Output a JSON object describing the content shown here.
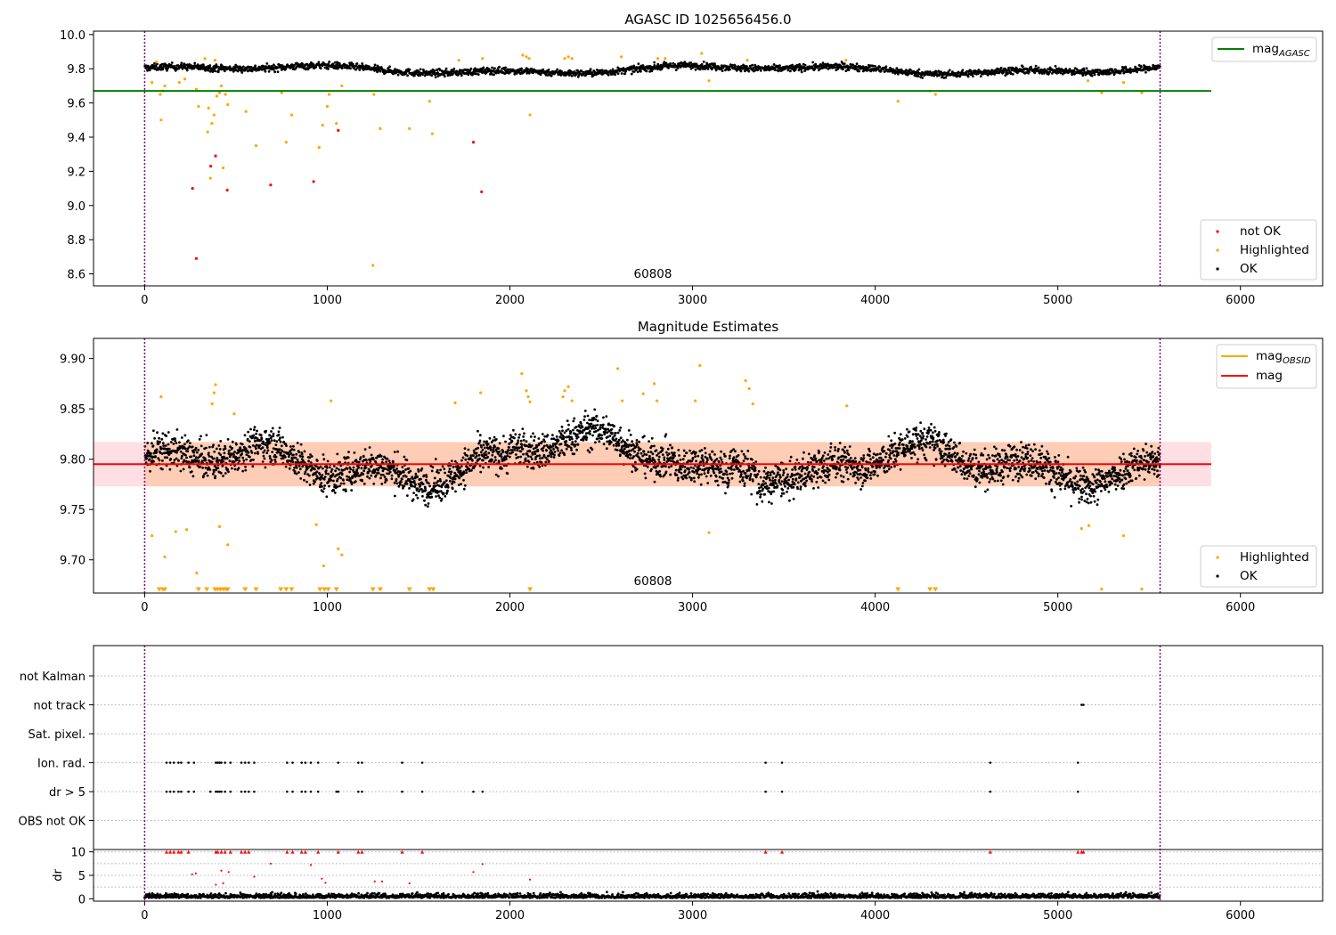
{
  "chart_data": [
    {
      "type": "scatter",
      "title": "AGASC ID 1025656456.0",
      "xlim": [
        -280,
        6450
      ],
      "ylim": [
        8.53,
        10.02
      ],
      "x_ticks": [
        0,
        1000,
        2000,
        3000,
        4000,
        5000,
        6000
      ],
      "y_ticks": [
        8.6,
        8.8,
        9.0,
        9.2,
        9.4,
        9.6,
        9.8,
        10.0
      ],
      "vlines": [
        0,
        5560
      ],
      "obsid_label": "60808",
      "mag_agasc": 9.67,
      "mag_agasc_xrange": [
        -280,
        5840
      ],
      "legend": {
        "lines": [
          {
            "name_main": "mag",
            "name_sub": "AGASC",
            "color": "#008000"
          }
        ],
        "points": [
          {
            "name": "not OK",
            "color": "#ff0000"
          },
          {
            "name": "Highlighted",
            "color": "#ffa500"
          },
          {
            "name": "OK",
            "color": "#000000"
          }
        ]
      },
      "ok_band": {
        "x_start": 0,
        "x_end": 5560,
        "center": 9.795,
        "spread": 0.018
      },
      "series": [
        {
          "name": "not OK",
          "color": "#ff0000",
          "points": [
            [
              262,
              9.1
            ],
            [
              283,
              8.69
            ],
            [
              362,
              9.23
            ],
            [
              388,
              9.29
            ],
            [
              452,
              9.09
            ],
            [
              690,
              9.12
            ],
            [
              925,
              9.14
            ],
            [
              1060,
              9.44
            ],
            [
              1800,
              9.37
            ],
            [
              1845,
              9.08
            ]
          ]
        },
        {
          "name": "Highlighted",
          "color": "#ffa500",
          "points": [
            [
              40,
              9.72
            ],
            [
              85,
              9.65
            ],
            [
              90,
              9.5
            ],
            [
              100,
              9.67
            ],
            [
              110,
              9.7
            ],
            [
              190,
              9.72
            ],
            [
              220,
              9.74
            ],
            [
              283,
              9.68
            ],
            [
              295,
              9.58
            ],
            [
              345,
              9.43
            ],
            [
              350,
              9.57
            ],
            [
              360,
              9.16
            ],
            [
              368,
              9.48
            ],
            [
              380,
              9.53
            ],
            [
              395,
              9.64
            ],
            [
              410,
              9.66
            ],
            [
              420,
              9.7
            ],
            [
              430,
              9.22
            ],
            [
              442,
              9.65
            ],
            [
              455,
              9.59
            ],
            [
              555,
              9.55
            ],
            [
              610,
              9.35
            ],
            [
              750,
              9.66
            ],
            [
              775,
              9.37
            ],
            [
              805,
              9.53
            ],
            [
              955,
              9.34
            ],
            [
              975,
              9.47
            ],
            [
              1000,
              9.58
            ],
            [
              1010,
              9.65
            ],
            [
              1050,
              9.48
            ],
            [
              1080,
              9.7
            ],
            [
              1255,
              9.65
            ],
            [
              1290,
              9.45
            ],
            [
              1450,
              9.45
            ],
            [
              1560,
              9.61
            ],
            [
              1575,
              9.42
            ],
            [
              2110,
              9.53
            ],
            [
              3090,
              9.73
            ],
            [
              4125,
              9.61
            ],
            [
              4300,
              9.67
            ],
            [
              4330,
              9.65
            ],
            [
              5165,
              9.73
            ],
            [
              5240,
              9.66
            ],
            [
              5360,
              9.72
            ],
            [
              5460,
              9.66
            ],
            [
              1250,
              8.65
            ],
            [
              65,
              9.84
            ],
            [
              330,
              9.86
            ],
            [
              385,
              9.85
            ],
            [
              1720,
              9.85
            ],
            [
              1850,
              9.86
            ],
            [
              2070,
              9.88
            ],
            [
              2090,
              9.87
            ],
            [
              2105,
              9.86
            ],
            [
              2300,
              9.86
            ],
            [
              2320,
              9.87
            ],
            [
              2340,
              9.86
            ],
            [
              2610,
              9.87
            ],
            [
              2810,
              9.86
            ],
            [
              2850,
              9.86
            ],
            [
              3050,
              9.89
            ],
            [
              3300,
              9.85
            ],
            [
              3840,
              9.85
            ]
          ]
        }
      ]
    },
    {
      "type": "scatter",
      "title": "Magnitude Estimates",
      "xlim": [
        -280,
        6450
      ],
      "ylim": [
        9.667,
        9.92
      ],
      "x_ticks": [
        0,
        1000,
        2000,
        3000,
        4000,
        5000,
        6000
      ],
      "y_ticks": [
        9.7,
        9.75,
        9.8,
        9.85,
        9.9
      ],
      "vlines": [
        0,
        5560
      ],
      "obsid_label": "60808",
      "mag_line": {
        "value": 9.795,
        "xrange": [
          -280,
          5840
        ],
        "color": "#ff0000"
      },
      "mag_band": {
        "low": 9.773,
        "high": 9.817,
        "color": "#ffc0c8"
      },
      "obsid_band": {
        "x_start": 0,
        "x_end": 5560,
        "low": 9.773,
        "high": 9.817,
        "color": "#ffa54f"
      },
      "legend": {
        "lines": [
          {
            "name_main": "mag",
            "name_sub": "OBSID",
            "color": "#ffa500"
          },
          {
            "name_main": "mag",
            "name_sub": "",
            "color": "#ff0000"
          }
        ],
        "points": [
          {
            "name": "Highlighted",
            "color": "#ffa500"
          },
          {
            "name": "OK",
            "color": "#000000"
          }
        ]
      },
      "ok_band": {
        "x_start": 0,
        "x_end": 5560,
        "center": 9.795,
        "spread": 0.016
      },
      "series": [
        {
          "name": "Highlighted",
          "color": "#ffa500",
          "points": [
            [
              90,
              9.862
            ],
            [
              370,
              9.855
            ],
            [
              380,
              9.866
            ],
            [
              388,
              9.874
            ],
            [
              490,
              9.845
            ],
            [
              1020,
              9.858
            ],
            [
              1700,
              9.856
            ],
            [
              1840,
              9.866
            ],
            [
              2065,
              9.885
            ],
            [
              2090,
              9.868
            ],
            [
              2100,
              9.862
            ],
            [
              2110,
              9.857
            ],
            [
              2290,
              9.862
            ],
            [
              2300,
              9.868
            ],
            [
              2320,
              9.872
            ],
            [
              2340,
              9.858
            ],
            [
              2590,
              9.89
            ],
            [
              2615,
              9.858
            ],
            [
              2730,
              9.865
            ],
            [
              2790,
              9.875
            ],
            [
              2805,
              9.858
            ],
            [
              3015,
              9.858
            ],
            [
              3040,
              9.893
            ],
            [
              3290,
              9.878
            ],
            [
              3310,
              9.87
            ],
            [
              3330,
              9.855
            ],
            [
              3845,
              9.853
            ],
            [
              40,
              9.724
            ],
            [
              110,
              9.703
            ],
            [
              170,
              9.728
            ],
            [
              230,
              9.73
            ],
            [
              285,
              9.687
            ],
            [
              410,
              9.733
            ],
            [
              455,
              9.715
            ],
            [
              940,
              9.735
            ],
            [
              980,
              9.694
            ],
            [
              1060,
              9.711
            ],
            [
              1080,
              9.705
            ],
            [
              3090,
              9.727
            ],
            [
              5130,
              9.731
            ],
            [
              5170,
              9.734
            ],
            [
              5360,
              9.724
            ],
            [
              5240,
              9.671
            ],
            [
              5460,
              9.671
            ]
          ]
        },
        {
          "name": "Highlighted (clipped)",
          "color": "#ffa500",
          "points": [
            [
              80,
              9.671
            ],
            [
              100,
              9.671
            ],
            [
              110,
              9.671
            ],
            [
              295,
              9.671
            ],
            [
              340,
              9.671
            ],
            [
              385,
              9.671
            ],
            [
              400,
              9.671
            ],
            [
              415,
              9.671
            ],
            [
              430,
              9.671
            ],
            [
              445,
              9.671
            ],
            [
              455,
              9.671
            ],
            [
              550,
              9.671
            ],
            [
              610,
              9.671
            ],
            [
              745,
              9.671
            ],
            [
              775,
              9.671
            ],
            [
              805,
              9.671
            ],
            [
              960,
              9.671
            ],
            [
              985,
              9.671
            ],
            [
              1005,
              9.671
            ],
            [
              1050,
              9.671
            ],
            [
              1250,
              9.671
            ],
            [
              1290,
              9.671
            ],
            [
              1450,
              9.671
            ],
            [
              1560,
              9.671
            ],
            [
              1580,
              9.671
            ],
            [
              2110,
              9.671
            ],
            [
              4125,
              9.671
            ],
            [
              4300,
              9.671
            ],
            [
              4330,
              9.671
            ]
          ]
        }
      ]
    },
    {
      "type": "scatter",
      "title": "",
      "xlim": [
        -280,
        6450
      ],
      "categories": [
        "not Kalman",
        "not track",
        "Sat. pixel.",
        "Ion. rad.",
        "dr > 5",
        "OBS not OK"
      ],
      "vlines": [
        0,
        5560
      ],
      "x_ticks": [
        0,
        1000,
        2000,
        3000,
        4000,
        5000,
        6000
      ],
      "flags": {
        "not track": [
          5130,
          5140
        ],
        "Ion. rad.": [
          120,
          140,
          160,
          185,
          200,
          240,
          270,
          390,
          400,
          410,
          420,
          440,
          470,
          530,
          550,
          570,
          600,
          780,
          810,
          860,
          880,
          910,
          950,
          1060,
          1170,
          1190,
          1410,
          1520,
          3400,
          3490,
          4630,
          5110
        ],
        "dr > 5": [
          120,
          140,
          160,
          185,
          200,
          240,
          270,
          360,
          390,
          400,
          410,
          420,
          440,
          470,
          530,
          550,
          570,
          600,
          780,
          810,
          860,
          880,
          910,
          950,
          1050,
          1060,
          1170,
          1190,
          1410,
          1520,
          1800,
          1850,
          3400,
          3490,
          4630,
          5110
        ]
      },
      "dr_ylim": [
        -0.5,
        10.5
      ],
      "dr_yticks": [
        0,
        5,
        10
      ],
      "dr_ylabel": "dr",
      "dr_red": [
        [
          120,
          10
        ],
        [
          140,
          10
        ],
        [
          160,
          10
        ],
        [
          185,
          10
        ],
        [
          200,
          10
        ],
        [
          240,
          10
        ],
        [
          260,
          5.2
        ],
        [
          280,
          5.4
        ],
        [
          390,
          10
        ],
        [
          400,
          10
        ],
        [
          420,
          10
        ],
        [
          440,
          10
        ],
        [
          470,
          10
        ],
        [
          530,
          10
        ],
        [
          550,
          10
        ],
        [
          570,
          10
        ],
        [
          600,
          4.7
        ],
        [
          690,
          7.5
        ],
        [
          780,
          10
        ],
        [
          810,
          10
        ],
        [
          860,
          10
        ],
        [
          880,
          10
        ],
        [
          910,
          7.2
        ],
        [
          950,
          10
        ],
        [
          970,
          4.3
        ],
        [
          990,
          3.4
        ],
        [
          1060,
          10
        ],
        [
          1170,
          10
        ],
        [
          1190,
          10
        ],
        [
          1260,
          3.7
        ],
        [
          1300,
          3.7
        ],
        [
          1410,
          10
        ],
        [
          1450,
          3.3
        ],
        [
          1520,
          10
        ],
        [
          1800,
          5.7
        ],
        [
          1850,
          7.4
        ],
        [
          2110,
          4.1
        ],
        [
          3400,
          10
        ],
        [
          3490,
          10
        ],
        [
          4630,
          10
        ],
        [
          5110,
          10
        ],
        [
          5130,
          10
        ],
        [
          5140,
          10
        ],
        [
          420,
          6
        ],
        [
          390,
          3
        ],
        [
          430,
          3.3
        ],
        [
          460,
          5.7
        ]
      ]
    }
  ]
}
